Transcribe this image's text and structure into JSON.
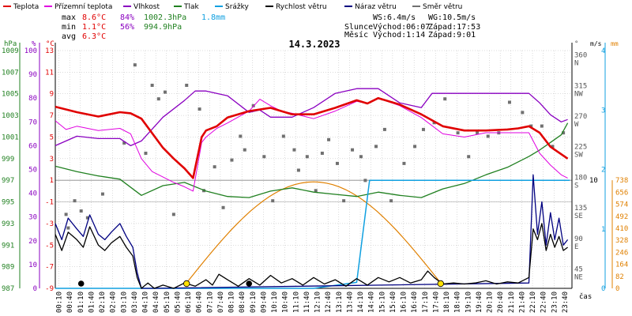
{
  "legend": [
    {
      "label": "Teplota",
      "color": "#e00000"
    },
    {
      "label": "Přízemní teplota",
      "color": "#e000e0"
    },
    {
      "label": "Vlhkost",
      "color": "#8a00c0"
    },
    {
      "label": "Tlak",
      "color": "#208020"
    },
    {
      "label": "Srážky",
      "color": "#10a0e0"
    },
    {
      "label": "Rychlost větru",
      "color": "#000000"
    },
    {
      "label": "Náraz větru",
      "color": "#000080"
    },
    {
      "label": "Směr větru",
      "color": "#707070"
    }
  ],
  "stats": {
    "max_label": "max",
    "max_temp": "8.6°C",
    "max_hum": "84%",
    "max_press": "1002.3hPa",
    "max_rain": "1.8mm",
    "min_label": "min",
    "min_temp": "1.1°C",
    "min_hum": "56%",
    "min_press": "994.9hPa",
    "avg_label": "avg",
    "avg_temp": "6.3°C"
  },
  "date_title": "14.3.2023",
  "wind_info": {
    "ws": "WS:6.4m/s",
    "wg": "WG:10.5m/s"
  },
  "sun_info": {
    "label": "Slunce",
    "rise": "Východ:06:07",
    "set": "Západ:17:53"
  },
  "moon_info": {
    "label": "Měsíc",
    "rise": "Východ:1:14",
    "set": "Západ:9:01"
  },
  "axis_units": {
    "hpa": "hPa",
    "pct": "%",
    "degc": "°C",
    "deg": "°",
    "ms": "m/s",
    "mm": "mm",
    "cas": "čas"
  },
  "colors": {
    "temp": "#e00000",
    "ground": "#e000e0",
    "hum": "#8a00c0",
    "press": "#208020",
    "rain": "#10a0e0",
    "wind": "#000000",
    "gust": "#000080",
    "dir": "#707070",
    "sun": "#e08000",
    "grid": "#b8b8b8"
  },
  "chart_data": {
    "type": "line",
    "title": "14.3.2023",
    "x_ticks": [
      "00:10",
      "00:40",
      "01:10",
      "01:40",
      "02:10",
      "02:40",
      "03:10",
      "03:40",
      "04:10",
      "04:40",
      "05:10",
      "05:40",
      "06:10",
      "06:40",
      "07:10",
      "07:40",
      "08:10",
      "08:40",
      "09:10",
      "09:40",
      "10:10",
      "10:40",
      "11:10",
      "11:40",
      "12:10",
      "12:40",
      "13:10",
      "13:40",
      "14:10",
      "14:40",
      "15:10",
      "15:40",
      "16:10",
      "16:40",
      "17:10",
      "17:40",
      "18:10",
      "18:40",
      "19:10",
      "19:40",
      "20:10",
      "20:40",
      "21:10",
      "21:40",
      "22:10",
      "22:40",
      "23:10",
      "23:40"
    ],
    "y_axes": {
      "pressure_hpa": [
        "1009",
        "1007",
        "1005",
        "1003",
        "1001",
        "999",
        "997",
        "995",
        "993",
        "991",
        "989",
        "987"
      ],
      "humidity_pct": [
        "100",
        "90",
        "80",
        "70",
        "60",
        "50",
        "40",
        "30",
        "20",
        "10",
        "0"
      ],
      "temperature_c": [
        "13",
        "11",
        "9",
        "7",
        "5",
        "3",
        "1",
        "-1",
        "-3",
        "-5",
        "-7",
        "-9"
      ],
      "direction": [
        {
          "v": "360",
          "d": "N"
        },
        {
          "v": "315",
          "d": "NW"
        },
        {
          "v": "270",
          "d": "W"
        },
        {
          "v": "225",
          "d": "SW"
        },
        {
          "v": "180",
          "d": "S"
        },
        {
          "v": "135",
          "d": "SE"
        },
        {
          "v": "90",
          "d": "E"
        },
        {
          "v": "45",
          "d": "NE"
        }
      ],
      "wind_ms_right": [
        "4",
        "3",
        "2",
        "1",
        "0"
      ],
      "wind_ms_lower": [
        "10"
      ],
      "rain_mm": [
        "738",
        "656",
        "574",
        "492",
        "410",
        "328",
        "246",
        "164",
        "82",
        "0"
      ]
    },
    "series": [
      {
        "name": "Teplota",
        "unit": "°C",
        "x": [
          0,
          1,
          2,
          3,
          3.5,
          4,
          5,
          5.5,
          6,
          6.4,
          6.8,
          7,
          7.5,
          8,
          9,
          10,
          10.5,
          11,
          12,
          13,
          14,
          14.5,
          15,
          16,
          17,
          18,
          19,
          20,
          21,
          21.5,
          22,
          22.5,
          23,
          23.8
        ],
        "values": [
          7.8,
          7.3,
          6.9,
          7.3,
          7.2,
          6.7,
          4.0,
          3.0,
          2.1,
          1.2,
          5.0,
          5.6,
          6.0,
          6.8,
          7.4,
          7.7,
          7.4,
          7.1,
          7.1,
          7.7,
          8.4,
          8.1,
          8.6,
          8.0,
          7.1,
          6.0,
          5.6,
          5.6,
          5.7,
          5.8,
          6.0,
          5.4,
          4.1,
          3.0
        ]
      },
      {
        "name": "Přízemní teplota",
        "unit": "°C",
        "x": [
          0,
          0.5,
          1,
          2,
          3,
          3.5,
          4,
          4.5,
          5,
          5.5,
          6,
          6.4,
          6.8,
          7,
          7.5,
          8,
          9,
          9.5,
          10,
          10.5,
          11,
          12,
          13,
          14,
          14.5,
          15,
          16,
          17,
          18,
          19,
          20,
          21,
          22,
          22.5,
          23,
          23.5,
          23.8
        ],
        "values": [
          6.5,
          5.7,
          6.0,
          5.6,
          5.8,
          5.3,
          3.0,
          1.8,
          1.3,
          0.8,
          0.4,
          0.0,
          4.5,
          5.0,
          5.8,
          6.3,
          7.4,
          8.5,
          7.9,
          7.4,
          7.2,
          6.7,
          7.4,
          8.3,
          8.1,
          8.6,
          7.9,
          6.8,
          5.3,
          5.0,
          5.4,
          5.4,
          5.4,
          3.5,
          2.4,
          1.5,
          1.2
        ]
      },
      {
        "name": "Vlhkost",
        "unit": "%",
        "x": [
          0,
          1,
          2,
          3,
          3.5,
          4,
          5,
          6,
          6.5,
          7,
          8,
          9,
          9.5,
          10,
          11,
          12,
          13,
          14,
          15,
          16,
          17,
          17.5,
          18,
          19,
          20,
          21,
          22,
          22.5,
          23,
          23.5,
          23.8
        ],
        "values": [
          60,
          64,
          63,
          63,
          60,
          62,
          72,
          79,
          83,
          83,
          81,
          74,
          75,
          72,
          72,
          76,
          82,
          84,
          84,
          78,
          76,
          82,
          82,
          82,
          82,
          82,
          82,
          78,
          73,
          70,
          71
        ]
      },
      {
        "name": "Tlak",
        "unit": "hPa",
        "x": [
          0,
          1,
          2,
          3,
          4,
          5,
          6,
          7,
          8,
          9,
          10,
          11,
          12,
          13,
          14,
          15,
          16,
          17,
          18,
          19,
          20,
          21,
          22,
          22.5,
          23,
          23.5,
          23.8
        ],
        "values": [
          998.3,
          997.8,
          997.4,
          997.1,
          995.6,
          996.5,
          996.8,
          996.0,
          995.5,
          995.4,
          996.0,
          996.3,
          995.9,
          995.7,
          995.5,
          995.9,
          995.6,
          995.4,
          996.2,
          996.7,
          997.5,
          998.2,
          999.2,
          999.8,
          1000.5,
          1001.2,
          1002.3
        ]
      },
      {
        "name": "Srážky",
        "unit": "mm",
        "x": [
          0,
          5.9,
          6.1,
          12,
          14.0,
          14.6,
          15.0,
          16,
          20,
          23.9
        ],
        "values": [
          0,
          0,
          0,
          0,
          0.1,
          1.8,
          1.8,
          1.8,
          1.8,
          1.8
        ]
      },
      {
        "name": "Rychlost větru",
        "unit": "m/s",
        "x": [
          0,
          0.3,
          0.6,
          1,
          1.3,
          1.6,
          2,
          2.3,
          2.6,
          3,
          3.3,
          3.6,
          3.8,
          4,
          4.3,
          4.6,
          5,
          5.5,
          6,
          6.5,
          7,
          7.3,
          7.6,
          8,
          8.5,
          9,
          9.5,
          10,
          10.5,
          11,
          11.5,
          12,
          12.5,
          13,
          13.5,
          14,
          14.5,
          15,
          15.5,
          16,
          16.5,
          17,
          17.3,
          17.6,
          18,
          18.5,
          19,
          19.5,
          20,
          20.5,
          21,
          21.5,
          22,
          22.2,
          22.4,
          22.6,
          22.8,
          23,
          23.2,
          23.4,
          23.6,
          23.8
        ],
        "values": [
          5.0,
          3.5,
          5.2,
          4.5,
          3.8,
          5.7,
          4.0,
          3.5,
          4.2,
          4.8,
          3.8,
          3.0,
          1.0,
          0.0,
          0.5,
          0.0,
          0.3,
          0.0,
          0.5,
          0.2,
          0.8,
          0.3,
          1.3,
          0.8,
          0.2,
          0.9,
          0.3,
          1.2,
          0.5,
          0.9,
          0.3,
          1.0,
          0.4,
          0.8,
          0.2,
          0.9,
          0.3,
          1.0,
          0.6,
          1.0,
          0.5,
          0.8,
          1.6,
          1.0,
          0.4,
          0.5,
          0.4,
          0.5,
          0.7,
          0.4,
          0.6,
          0.5,
          1.0,
          5.5,
          4.5,
          6.0,
          3.5,
          5.0,
          3.8,
          4.8,
          3.5,
          3.8
        ]
      },
      {
        "name": "Náraz větru",
        "unit": "m/s",
        "x": [
          0,
          0.3,
          0.6,
          1,
          1.3,
          1.6,
          2,
          2.3,
          2.6,
          3,
          3.3,
          3.6,
          3.8,
          4,
          4.5,
          22,
          22.2,
          22.4,
          22.6,
          22.8,
          23,
          23.2,
          23.4,
          23.6,
          23.8
        ],
        "values": [
          6.0,
          4.5,
          6.5,
          5.5,
          4.8,
          6.8,
          5.0,
          4.5,
          5.2,
          6.0,
          4.8,
          3.8,
          1.5,
          0.0,
          0.0,
          0.5,
          10.5,
          5.0,
          8.0,
          4.0,
          7.0,
          4.5,
          6.5,
          4.0,
          4.5
        ]
      },
      {
        "name": "Směr větru",
        "unit": "°",
        "x": [
          0.5,
          0.6,
          0.9,
          1.2,
          1.5,
          2.2,
          3.2,
          3.7,
          4.2,
          4.5,
          4.8,
          5.1,
          5.5,
          6.1,
          6.7,
          6.9,
          7.4,
          7.8,
          8.2,
          8.6,
          8.8,
          9.2,
          9.7,
          10.1,
          10.6,
          11.1,
          11.3,
          11.7,
          12.1,
          12.4,
          12.7,
          13.1,
          13.4,
          13.8,
          14.2,
          14.4,
          14.9,
          15.3,
          15.6,
          16.2,
          16.7,
          17.1,
          17.6,
          18.1,
          18.7,
          19.2,
          19.6,
          20.1,
          20.6,
          21.1,
          21.7,
          22.1,
          22.6,
          23.1,
          23.6
        ],
        "values": [
          130,
          110,
          150,
          135,
          125,
          160,
          235,
          350,
          220,
          320,
          300,
          310,
          130,
          320,
          285,
          165,
          200,
          140,
          210,
          245,
          225,
          290,
          215,
          150,
          245,
          225,
          195,
          215,
          165,
          220,
          240,
          205,
          150,
          225,
          215,
          180,
          230,
          255,
          150,
          205,
          230,
          255,
          265,
          300,
          250,
          215,
          250,
          245,
          250,
          295,
          280,
          260,
          260,
          230,
          250
        ]
      }
    ],
    "sun_arc": {
      "rise_hour": 6.1,
      "set_hour": 17.9
    },
    "markers": [
      {
        "type": "moon",
        "x": 1.2
      },
      {
        "type": "sunrise",
        "x": 6.1
      },
      {
        "type": "moon",
        "x": 9.0
      },
      {
        "type": "sunset",
        "x": 17.9
      }
    ],
    "grid": true
  }
}
